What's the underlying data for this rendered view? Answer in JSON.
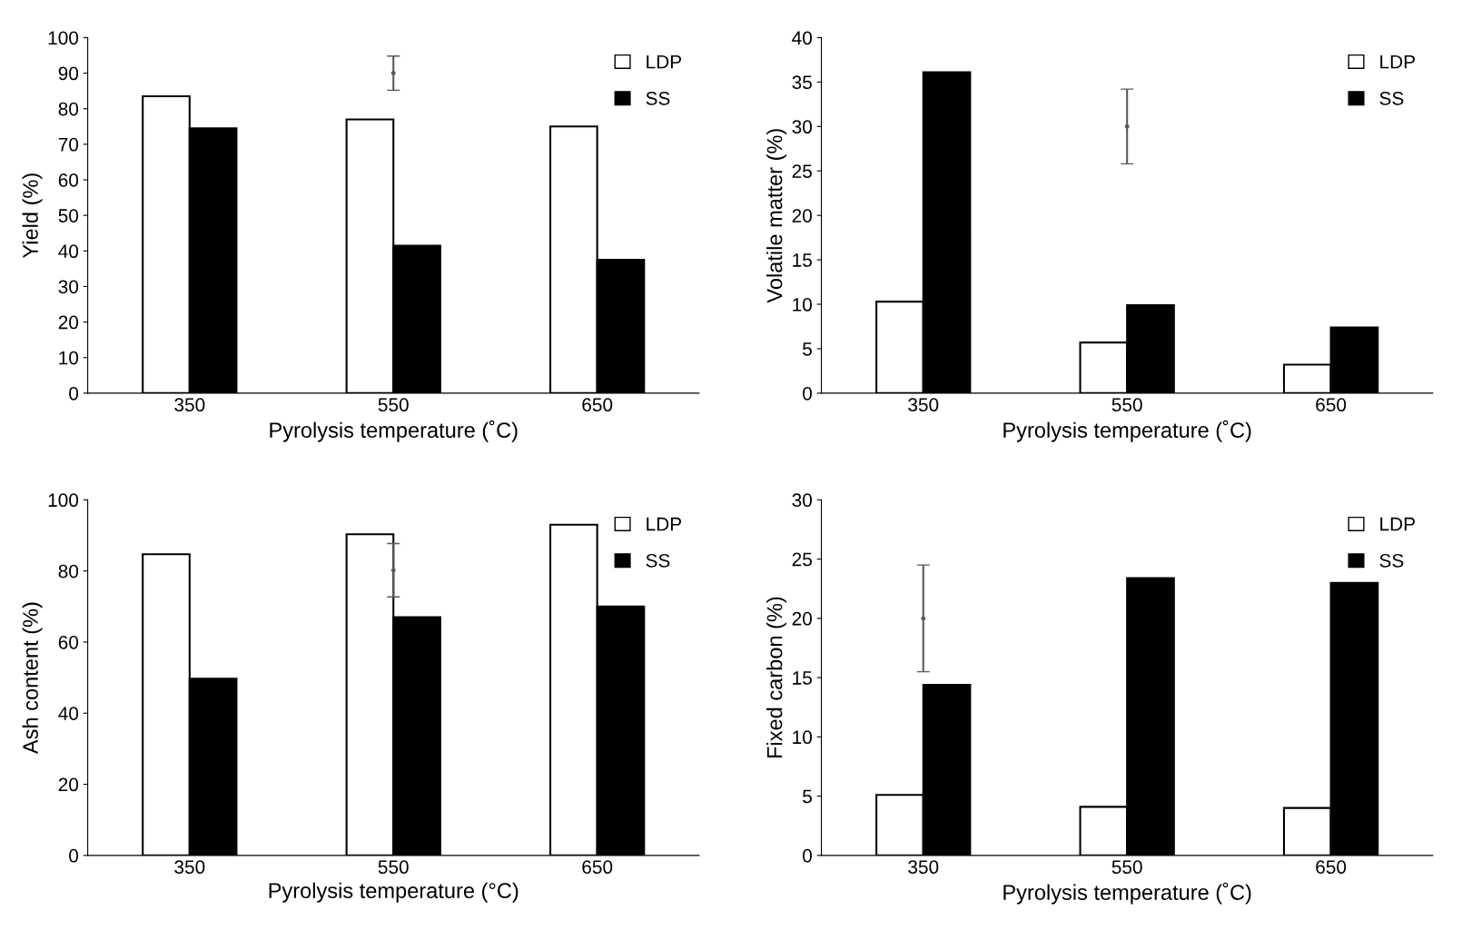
{
  "chart_data": [
    {
      "type": "bar",
      "xlabel": "Pyrolysis temperature (˚C)",
      "ylabel": "Yield (%)",
      "categories": [
        "350",
        "550",
        "650"
      ],
      "ylim": [
        0,
        100
      ],
      "yticks": [
        0,
        10,
        20,
        30,
        40,
        50,
        60,
        70,
        80,
        90,
        100
      ],
      "grid": false,
      "legend": "top right",
      "series": [
        {
          "name": "LDP",
          "color": "#ffffff",
          "values": [
            83.5,
            77,
            75
          ]
        },
        {
          "name": "SS",
          "color": "#000000",
          "values": [
            74.5,
            41.5,
            37.5
          ]
        },
        {
          "type": "scatter",
          "color": "#595959",
          "x": [
            "550"
          ],
          "values": [
            90
          ],
          "errors": [
            4.8
          ]
        }
      ]
    },
    {
      "type": "bar",
      "xlabel": "Pyrolysis temperature (˚C)",
      "ylabel": "Volatile matter (%)",
      "categories": [
        "350",
        "550",
        "650"
      ],
      "ylim": [
        0,
        40
      ],
      "yticks": [
        0,
        5,
        10,
        15,
        20,
        25,
        30,
        35,
        40
      ],
      "grid": false,
      "legend": "top right",
      "series": [
        {
          "name": "LDP",
          "color": "#ffffff",
          "values": [
            10.3,
            5.7,
            3.2
          ]
        },
        {
          "name": "SS",
          "color": "#000000",
          "values": [
            36.1,
            9.9,
            7.4
          ]
        },
        {
          "type": "scatter",
          "color": "#595959",
          "x": [
            "550"
          ],
          "values": [
            30
          ],
          "errors": [
            4.2
          ]
        }
      ]
    },
    {
      "type": "bar",
      "xlabel": "Pyrolysis temperature (°C)",
      "ylabel": "Ash content (%)",
      "categories": [
        "350",
        "550",
        "650"
      ],
      "ylim": [
        0,
        100
      ],
      "yticks": [
        0,
        20,
        40,
        60,
        80,
        100
      ],
      "grid": false,
      "legend": "top right",
      "series": [
        {
          "name": "LDP",
          "color": "#ffffff",
          "values": [
            84.7,
            90.3,
            93
          ]
        },
        {
          "name": "SS",
          "color": "#000000",
          "values": [
            49.7,
            67,
            70
          ]
        },
        {
          "type": "scatter",
          "color": "#595959",
          "x": [
            "550"
          ],
          "values": [
            80.2
          ],
          "errors": [
            7.5
          ]
        }
      ]
    },
    {
      "type": "bar",
      "xlabel": "Pyrolysis temperature (˚C)",
      "ylabel": "Fixed carbon (%)",
      "categories": [
        "350",
        "550",
        "650"
      ],
      "ylim": [
        0,
        30
      ],
      "yticks": [
        0,
        5,
        10,
        15,
        20,
        25,
        30
      ],
      "grid": false,
      "legend": "top right",
      "series": [
        {
          "name": "LDP",
          "color": "#ffffff",
          "values": [
            5.1,
            4.1,
            4.0
          ]
        },
        {
          "name": "SS",
          "color": "#000000",
          "values": [
            14.4,
            23.4,
            23.0
          ]
        },
        {
          "type": "scatter",
          "color": "#595959",
          "x": [
            "350"
          ],
          "values": [
            20
          ],
          "errors": [
            4.5
          ]
        }
      ]
    }
  ]
}
